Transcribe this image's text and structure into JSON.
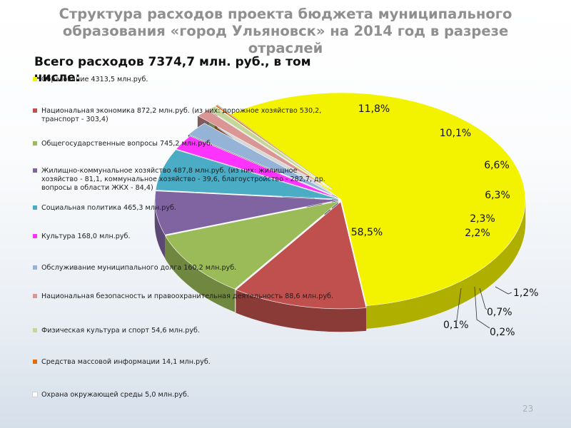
{
  "title": "Структура расходов проекта бюджета муниципального образования «город Ульяновск» на 2014 год в разрезе отраслей",
  "subtitle": "Всего расходов 7374,7 млн. руб., в том числе:",
  "page_number": "23",
  "chart_data": {
    "type": "pie",
    "title": "Структура расходов проекта бюджета муниципального образования «город Ульяновск» на 2014 год в разрезе отраслей",
    "subtitle": "Всего расходов 7374,7 млн. руб., в том числе:",
    "total": 7374.7,
    "unit": "млн.руб.",
    "legend_position": "left",
    "slices": [
      {
        "label": "Образование 4313,5 млн.руб.",
        "value": 4313.5,
        "percent_label": "58,5%",
        "color": "#f3f300"
      },
      {
        "label": "Национальная экономика 872,2 млн.руб. (из них: дорожное хозяйство 530,2, транспорт - 303,4)",
        "value": 872.2,
        "percent_label": "11,8%",
        "color": "#c0504d"
      },
      {
        "label": "Общегосударственные вопросы 745,2 млн.руб.",
        "value": 745.2,
        "percent_label": "10,1%",
        "color": "#9bbb59"
      },
      {
        "label": "Жилищно-коммунальное хозяйство 487,8 млн.руб. (из них: жилищное хозяйство - 81,1, коммунальное хозяйство - 39,6, благоустройство - 282,7, др. вопросы в области ЖКХ - 84,4)",
        "value": 487.8,
        "percent_label": "6,6%",
        "color": "#8064a2"
      },
      {
        "label": "Социальная политика 465,3 млн.руб.",
        "value": 465.3,
        "percent_label": "6,3%",
        "color": "#4bacc6"
      },
      {
        "label": "Культура 168,0 млн.руб.",
        "value": 168.0,
        "percent_label": "2,3%",
        "color": "#ff33ff"
      },
      {
        "label": "Обслуживание муниципального долга 160,2 млн.руб.",
        "value": 160.2,
        "percent_label": "2,2%",
        "color": "#95b3d7"
      },
      {
        "label": "Национальная безопасность и правоохранительная деятельность 88,6 млн.руб.",
        "value": 88.6,
        "percent_label": "1,2%",
        "color": "#d99694"
      },
      {
        "label": "Физическая культура и спорт 54,6 млн.руб.",
        "value": 54.6,
        "percent_label": "0,7%",
        "color": "#c4d79b"
      },
      {
        "label": "Средства массовой информации 14,1 млн.руб.",
        "value": 14.1,
        "percent_label": "0,2%",
        "color": "#e36c09"
      },
      {
        "label": "Охрана окружающей среды 5,0 млн.руб.",
        "value": 5.0,
        "percent_label": "0,1%",
        "color": "#ffffff"
      }
    ]
  }
}
